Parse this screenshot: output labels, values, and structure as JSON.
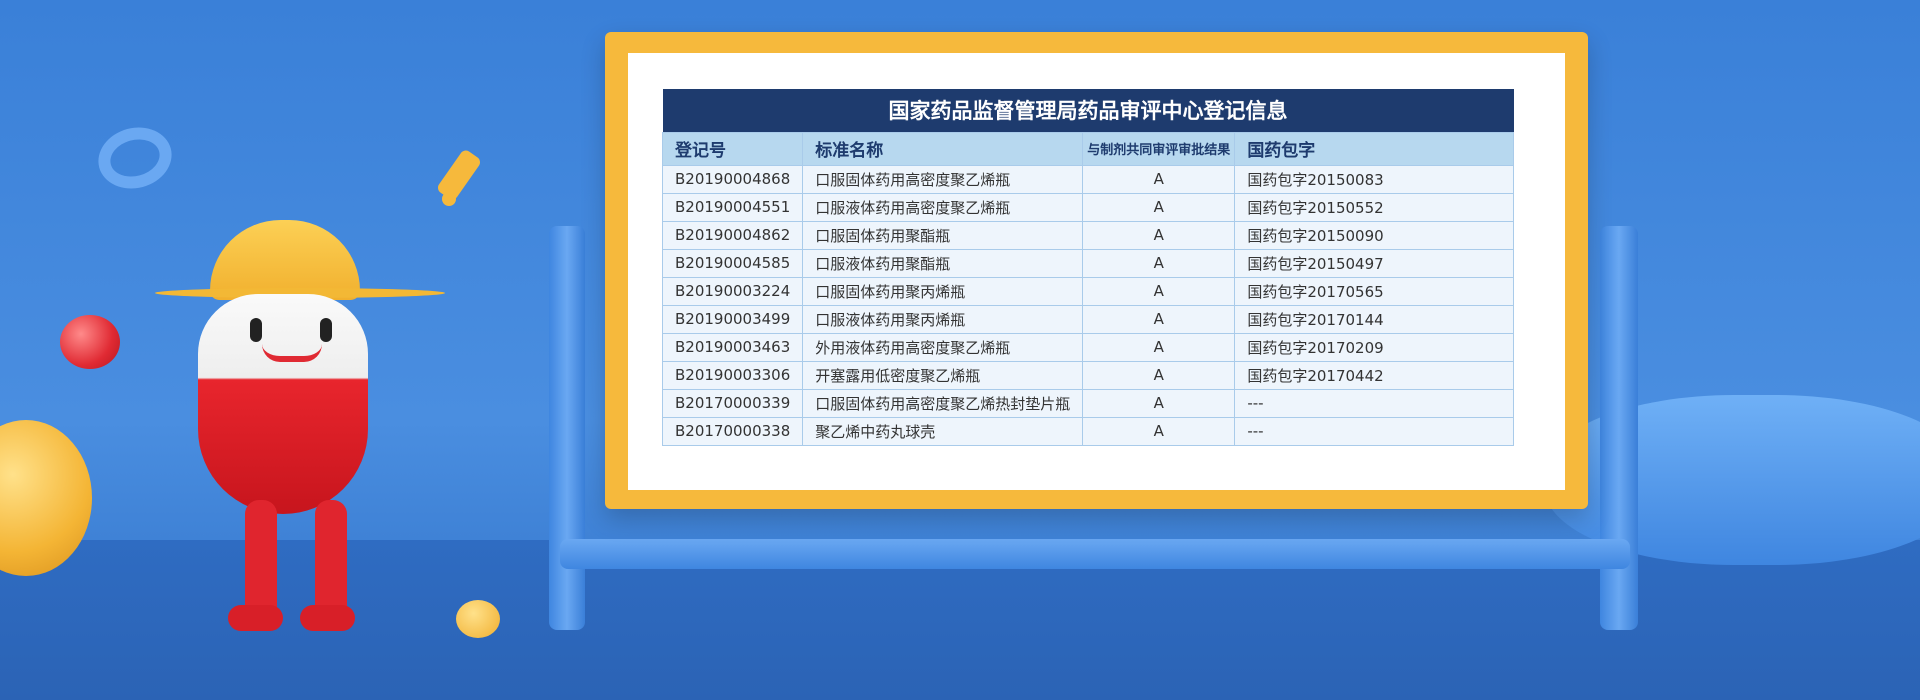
{
  "table": {
    "title": "国家药品监督管理局药品审评中心登记信息",
    "headers": [
      "登记号",
      "标准名称",
      "与制剂共同审评审批结果",
      "国药包字"
    ],
    "rows": [
      [
        "B20190004868",
        "口服固体药用高密度聚乙烯瓶",
        "A",
        "国药包字20150083"
      ],
      [
        "B20190004551",
        "口服液体药用高密度聚乙烯瓶",
        "A",
        "国药包字20150552"
      ],
      [
        "B20190004862",
        "口服固体药用聚酯瓶",
        "A",
        "国药包字20150090"
      ],
      [
        "B20190004585",
        "口服液体药用聚酯瓶",
        "A",
        "国药包字20150497"
      ],
      [
        "B20190003224",
        "口服固体药用聚丙烯瓶",
        "A",
        "国药包字20170565"
      ],
      [
        "B20190003499",
        "口服液体药用聚丙烯瓶",
        "A",
        "国药包字20170144"
      ],
      [
        "B20190003463",
        "外用液体药用高密度聚乙烯瓶",
        "A",
        "国药包字20170209"
      ],
      [
        "B20190003306",
        "开塞露用低密度聚乙烯瓶",
        "A",
        "国药包字20170442"
      ],
      [
        "B20170000339",
        "口服固体药用高密度聚乙烯热封垫片瓶",
        "A",
        "---"
      ],
      [
        "B20170000338",
        "聚乙烯中药丸球壳",
        "A",
        "---"
      ]
    ]
  },
  "colors": {
    "title_bg": "#1e3b6e",
    "header_bg": "#b7d8ef",
    "frame": "#f6b93c",
    "background": "#3f82d6"
  }
}
